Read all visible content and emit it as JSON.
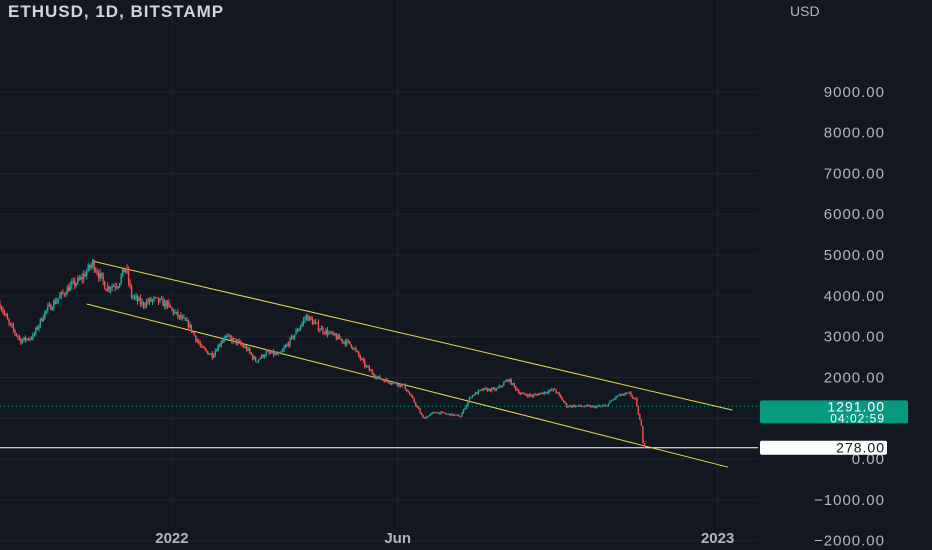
{
  "chart_title": "ETHUSD, 1D, BITSTAMP",
  "axis": {
    "currency_label": "USD",
    "y_ticks": [
      "9000.00",
      "8000.00",
      "7000.00",
      "6000.00",
      "5000.00",
      "4000.00",
      "3000.00",
      "2000.00",
      "1000.00",
      "0.00",
      "−1000.00",
      "−2000.00"
    ],
    "x_ticks": [
      "2022",
      "Jun",
      "2023"
    ]
  },
  "price_badge": {
    "price": "1291.00",
    "countdown": "04:02:59",
    "color": "#089981"
  },
  "level_badge": {
    "value": "278.00"
  },
  "colors": {
    "up": "#26a69a",
    "down": "#ef5350",
    "channel": "#e6d84a",
    "grid": "#1f2330"
  },
  "chart_data": {
    "type": "candlestick",
    "title": "ETHUSD, 1D, BITSTAMP",
    "ylabel": "USD",
    "ylim": [
      -2200,
      9800
    ],
    "x_range": [
      "2021-09-08",
      "2023-01-28"
    ],
    "y_ticks": [
      9000,
      8000,
      7000,
      6000,
      5000,
      4000,
      3000,
      2000,
      1000,
      0,
      -1000,
      -2000
    ],
    "x_ticks": [
      {
        "label": "2022",
        "date": "2022-01-01"
      },
      {
        "label": "Jun",
        "date": "2022-06-01"
      },
      {
        "label": "2023",
        "date": "2023-01-01"
      }
    ],
    "last_price": 1291,
    "horizontal_level": 278,
    "close_path": [
      {
        "date": "2021-09-08",
        "close": 3800
      },
      {
        "date": "2021-09-14",
        "close": 3300
      },
      {
        "date": "2021-09-22",
        "close": 2900
      },
      {
        "date": "2021-09-30",
        "close": 3000
      },
      {
        "date": "2021-10-08",
        "close": 3600
      },
      {
        "date": "2021-10-16",
        "close": 3900
      },
      {
        "date": "2021-10-24",
        "close": 4200
      },
      {
        "date": "2021-11-01",
        "close": 4400
      },
      {
        "date": "2021-11-09",
        "close": 4800
      },
      {
        "date": "2021-11-18",
        "close": 4200
      },
      {
        "date": "2021-11-26",
        "close": 4300
      },
      {
        "date": "2021-12-01",
        "close": 4700
      },
      {
        "date": "2021-12-05",
        "close": 4000
      },
      {
        "date": "2021-12-12",
        "close": 3800
      },
      {
        "date": "2021-12-20",
        "close": 3900
      },
      {
        "date": "2021-12-28",
        "close": 3800
      },
      {
        "date": "2022-01-05",
        "close": 3500
      },
      {
        "date": "2022-01-12",
        "close": 3300
      },
      {
        "date": "2022-01-21",
        "close": 2700
      },
      {
        "date": "2022-01-28",
        "close": 2550
      },
      {
        "date": "2022-02-05",
        "close": 3000
      },
      {
        "date": "2022-02-12",
        "close": 2900
      },
      {
        "date": "2022-02-20",
        "close": 2700
      },
      {
        "date": "2022-02-26",
        "close": 2400
      },
      {
        "date": "2022-03-05",
        "close": 2600
      },
      {
        "date": "2022-03-14",
        "close": 2550
      },
      {
        "date": "2022-03-23",
        "close": 3000
      },
      {
        "date": "2022-04-01",
        "close": 3500
      },
      {
        "date": "2022-04-10",
        "close": 3200
      },
      {
        "date": "2022-04-20",
        "close": 3000
      },
      {
        "date": "2022-05-01",
        "close": 2800
      },
      {
        "date": "2022-05-10",
        "close": 2300
      },
      {
        "date": "2022-05-18",
        "close": 2000
      },
      {
        "date": "2022-05-26",
        "close": 1900
      },
      {
        "date": "2022-06-05",
        "close": 1800
      },
      {
        "date": "2022-06-12",
        "close": 1400
      },
      {
        "date": "2022-06-18",
        "close": 1000
      },
      {
        "date": "2022-06-26",
        "close": 1150
      },
      {
        "date": "2022-07-05",
        "close": 1100
      },
      {
        "date": "2022-07-13",
        "close": 1050
      },
      {
        "date": "2022-07-20",
        "close": 1550
      },
      {
        "date": "2022-07-28",
        "close": 1700
      },
      {
        "date": "2022-08-06",
        "close": 1700
      },
      {
        "date": "2022-08-14",
        "close": 1950
      },
      {
        "date": "2022-08-22",
        "close": 1600
      },
      {
        "date": "2022-08-30",
        "close": 1550
      },
      {
        "date": "2022-09-08",
        "close": 1650
      },
      {
        "date": "2022-09-14",
        "close": 1700
      },
      {
        "date": "2022-09-22",
        "close": 1300
      },
      {
        "date": "2022-10-01",
        "close": 1300
      },
      {
        "date": "2022-10-10",
        "close": 1280
      },
      {
        "date": "2022-10-18",
        "close": 1300
      },
      {
        "date": "2022-10-26",
        "close": 1550
      },
      {
        "date": "2022-11-03",
        "close": 1600
      },
      {
        "date": "2022-11-07",
        "close": 1450
      },
      {
        "date": "2022-11-09",
        "close": 1100
      },
      {
        "date": "2022-11-11",
        "close": 800
      },
      {
        "date": "2022-11-12",
        "close": 400
      },
      {
        "date": "2022-11-13",
        "close": 278
      }
    ],
    "channel_lines": [
      {
        "name": "upper",
        "points": [
          {
            "date": "2021-11-09",
            "value": 4850
          },
          {
            "date": "2023-01-11",
            "value": 1200
          }
        ]
      },
      {
        "name": "lower",
        "points": [
          {
            "date": "2021-11-05",
            "value": 3800
          },
          {
            "date": "2023-01-08",
            "value": -200
          }
        ]
      }
    ]
  }
}
